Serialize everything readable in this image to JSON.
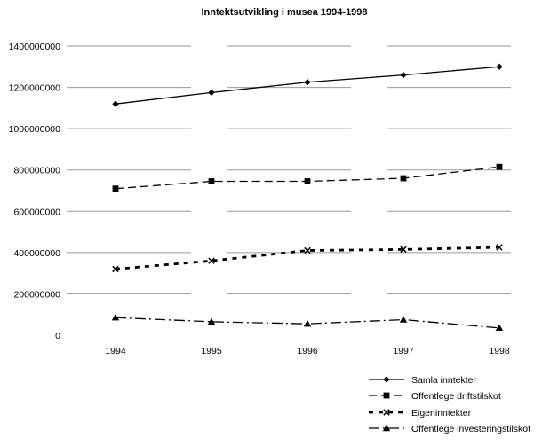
{
  "chart_data": {
    "type": "line",
    "title": "Inntektsutvikling i musea 1994-1998",
    "xlabel": "",
    "ylabel": "",
    "categories": [
      "1994",
      "1995",
      "1996",
      "1997",
      "1998"
    ],
    "ylim": [
      0,
      1400000000
    ],
    "yticks": [
      0,
      200000000,
      400000000,
      600000000,
      800000000,
      1000000000,
      1200000000,
      1400000000
    ],
    "ytick_labels": [
      "0",
      "200000000",
      "400000000",
      "600000000",
      "800000000",
      "1000000000",
      "1200000000",
      "1400000000"
    ],
    "legend_position": "bottom-right",
    "series": [
      {
        "name": "Samla inntekter",
        "marker": "diamond",
        "dash": "solid",
        "values": [
          1120000000,
          1175000000,
          1225000000,
          1260000000,
          1300000000
        ]
      },
      {
        "name": "Offentlege driftstilskot",
        "marker": "square",
        "dash": "dashed",
        "values": [
          710000000,
          745000000,
          745000000,
          760000000,
          815000000
        ]
      },
      {
        "name": "Eigeninntekter",
        "marker": "x",
        "dash": "dotted",
        "values": [
          320000000,
          360000000,
          410000000,
          415000000,
          425000000
        ]
      },
      {
        "name": "Offentlege investeringstilskot",
        "marker": "triangle",
        "dash": "dashdot",
        "values": [
          85000000,
          65000000,
          55000000,
          75000000,
          35000000
        ]
      }
    ]
  }
}
